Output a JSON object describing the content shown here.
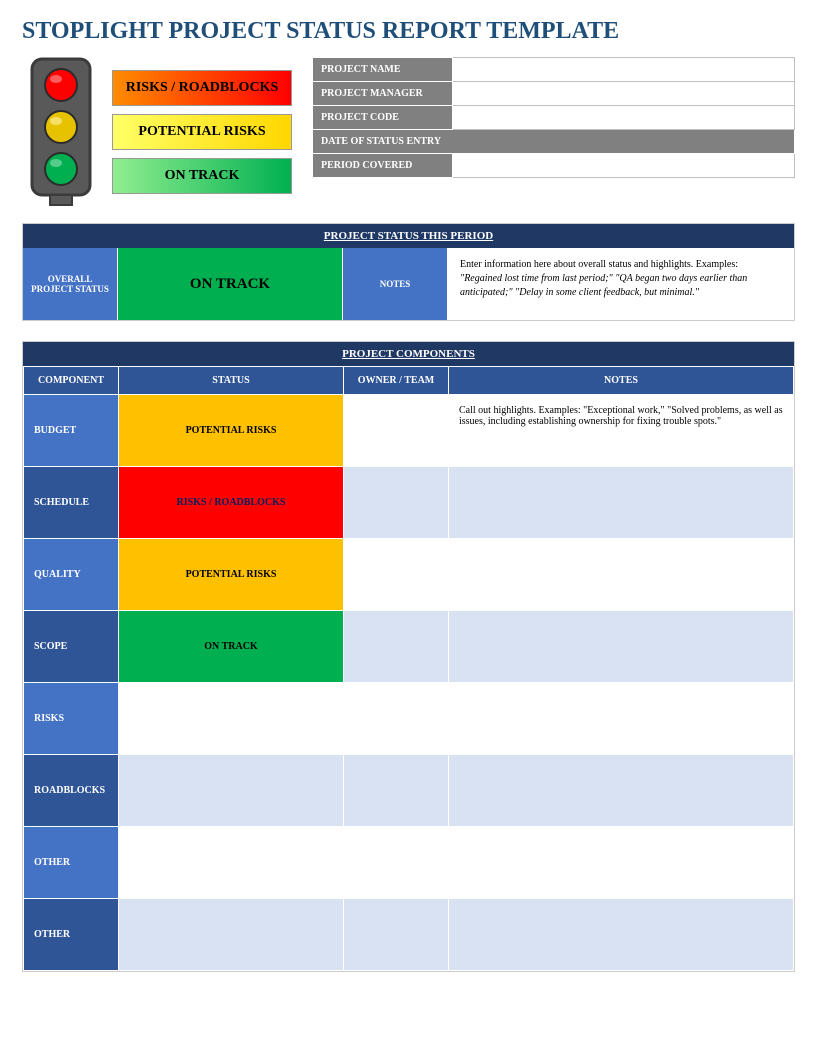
{
  "title": "STOPLIGHT PROJECT STATUS REPORT TEMPLATE",
  "legend": {
    "red": "RISKS / ROADBLOCKS",
    "yellow": "POTENTIAL RISKS",
    "green": "ON TRACK"
  },
  "meta": {
    "project_name_label": "PROJECT NAME",
    "project_name": "",
    "project_manager_label": "PROJECT MANAGER",
    "project_manager": "",
    "project_code_label": "PROJECT CODE",
    "project_code": "",
    "date_entry_label": "DATE OF STATUS ENTRY",
    "period_label": "PERIOD COVERED",
    "period": ""
  },
  "status_section": {
    "header": "PROJECT STATUS THIS PERIOD",
    "overall_label": "OVERALL PROJECT STATUS",
    "overall_status": "ON TRACK",
    "overall_color": "#00b050",
    "notes_label": "NOTES",
    "notes_intro": "Enter information here about overall status and highlights. Examples:",
    "notes_examples": "\"Regained lost time from last period;\" \"QA began two days earlier than anticipated;\" \"Delay in some client feedback, but minimal.\""
  },
  "components": {
    "header": "PROJECT COMPONENTS",
    "col_component": "COMPONENT",
    "col_status": "STATUS",
    "col_owner": "OWNER / TEAM",
    "col_notes": "NOTES",
    "rows": [
      {
        "component": "BUDGET",
        "status": "POTENTIAL RISKS",
        "status_class": "status-yellow",
        "row_class": "row-blue1",
        "alt": "odd",
        "notes": "Call out highlights. Examples: \"Exceptional work,\" \"Solved problems, as well as issues, including establishing ownership for fixing trouble spots.\""
      },
      {
        "component": "SCHEDULE",
        "status": "RISKS / ROADBLOCKS",
        "status_class": "status-red",
        "row_class": "row-blue2",
        "alt": "even",
        "notes": ""
      },
      {
        "component": "QUALITY",
        "status": "POTENTIAL RISKS",
        "status_class": "status-yellow",
        "row_class": "row-blue1",
        "alt": "odd",
        "notes": ""
      },
      {
        "component": "SCOPE",
        "status": "ON TRACK",
        "status_class": "status-green",
        "row_class": "row-blue2",
        "alt": "even",
        "notes": ""
      },
      {
        "component": "RISKS",
        "status": "",
        "status_class": "",
        "row_class": "row-blue1",
        "alt": "odd",
        "notes": ""
      },
      {
        "component": "ROADBLOCKS",
        "status": "",
        "status_class": "",
        "row_class": "row-blue2",
        "alt": "even",
        "notes": ""
      },
      {
        "component": "OTHER",
        "status": "",
        "status_class": "",
        "row_class": "row-blue1",
        "alt": "odd",
        "notes": ""
      },
      {
        "component": "OTHER",
        "status": "",
        "status_class": "",
        "row_class": "row-blue2",
        "alt": "even",
        "notes": ""
      }
    ]
  },
  "colors": {
    "title": "#1f4e79",
    "header_dark": "#1f3864",
    "header_mid": "#2f5597",
    "cell_blue": "#4472c4",
    "alt_light": "#d9e2f3",
    "grey": "#808080",
    "red": "#ff0000",
    "yellow": "#ffc000",
    "green": "#00b050"
  },
  "stoplight": {
    "body_fill": "#595959",
    "border": "#3b3b3b",
    "red": "#ff0000",
    "yellow": "#e6c200",
    "green": "#00b050"
  }
}
